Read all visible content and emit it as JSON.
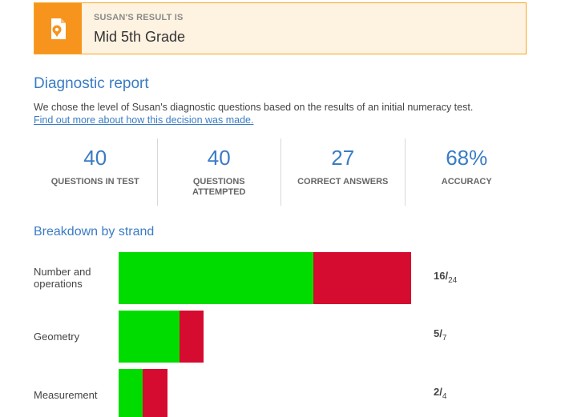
{
  "result": {
    "label": "SUSAN'S RESULT IS",
    "value": "Mid 5th Grade",
    "icon": "map-pin-document-icon",
    "accent_color": "#f7941d"
  },
  "report": {
    "title": "Diagnostic report",
    "intro_text": "We chose the level of Susan's diagnostic questions based on the results of an initial numeracy test.",
    "link_text": "Find out more about how this decision was made."
  },
  "stats": [
    {
      "value": "40",
      "label": "QUESTIONS IN TEST"
    },
    {
      "value": "40",
      "label": "QUESTIONS ATTEMPTED"
    },
    {
      "value": "27",
      "label": "CORRECT ANSWERS"
    },
    {
      "value": "68%",
      "label": "ACCURACY"
    }
  ],
  "breakdown": {
    "title": "Breakdown by strand",
    "correct_color": "#00dc00",
    "incorrect_color": "#d50b2f",
    "strands": [
      {
        "label": "Number and operations",
        "correct": 16,
        "total": 24
      },
      {
        "label": "Geometry",
        "correct": 5,
        "total": 7
      },
      {
        "label": "Measurement",
        "correct": 2,
        "total": 4
      }
    ]
  }
}
